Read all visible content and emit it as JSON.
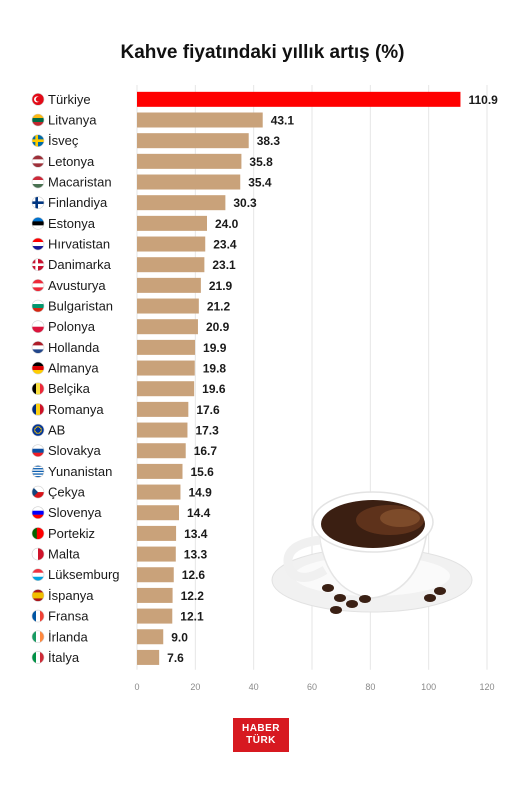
{
  "chart_data": {
    "type": "bar",
    "orientation": "horizontal",
    "title": "Kahve fiyatındaki yıllık artış (%)",
    "categories": [
      "Türkiye",
      "Litvanya",
      "İsveç",
      "Letonya",
      "Macaristan",
      "Finlandiya",
      "Estonya",
      "Hırvatistan",
      "Danimarka",
      "Avusturya",
      "Bulgaristan",
      "Polonya",
      "Hollanda",
      "Almanya",
      "Belçika",
      "Romanya",
      "AB",
      "Slovakya",
      "Yunanistan",
      "Çekya",
      "Slovenya",
      "Portekiz",
      "Malta",
      "Lüksemburg",
      "İspanya",
      "Fransa",
      "İrlanda",
      "İtalya"
    ],
    "values": [
      110.9,
      43.1,
      38.3,
      35.8,
      35.4,
      30.3,
      24.0,
      23.4,
      23.1,
      21.9,
      21.2,
      20.9,
      19.9,
      19.8,
      19.6,
      17.6,
      17.3,
      16.7,
      15.6,
      14.9,
      14.4,
      13.4,
      13.3,
      12.6,
      12.2,
      12.1,
      9.0,
      7.6
    ],
    "value_labels": [
      "110.9",
      "43.1",
      "38.3",
      "35.8",
      "35.4",
      "30.3",
      "24.0",
      "23.4",
      "23.1",
      "21.9",
      "21.2",
      "20.9",
      "19.9",
      "19.8",
      "19.6",
      "17.6",
      "17.3",
      "16.7",
      "15.6",
      "14.9",
      "14.4",
      "13.4",
      "13.3",
      "12.6",
      "12.2",
      "12.1",
      "9.0",
      "7.6"
    ],
    "xlim": [
      0,
      120
    ],
    "x_ticks": [
      "0",
      "20",
      "40",
      "60",
      "80",
      "100",
      "120"
    ],
    "grid": true,
    "colors": {
      "highlight": "#ff0000",
      "bar": "#c9a27a",
      "grid": "#e6e6e6"
    },
    "flag_icons": [
      "turkey-flag-icon",
      "lithuania-flag-icon",
      "sweden-flag-icon",
      "latvia-flag-icon",
      "hungary-flag-icon",
      "finland-flag-icon",
      "estonia-flag-icon",
      "croatia-flag-icon",
      "denmark-flag-icon",
      "austria-flag-icon",
      "bulgaria-flag-icon",
      "poland-flag-icon",
      "netherlands-flag-icon",
      "germany-flag-icon",
      "belgium-flag-icon",
      "romania-flag-icon",
      "eu-flag-icon",
      "slovakia-flag-icon",
      "greece-flag-icon",
      "czechia-flag-icon",
      "slovenia-flag-icon",
      "portugal-flag-icon",
      "malta-flag-icon",
      "luxembourg-flag-icon",
      "spain-flag-icon",
      "france-flag-icon",
      "ireland-flag-icon",
      "italy-flag-icon"
    ]
  },
  "logo": {
    "line1": "HABER",
    "line2": "TÜRK"
  }
}
